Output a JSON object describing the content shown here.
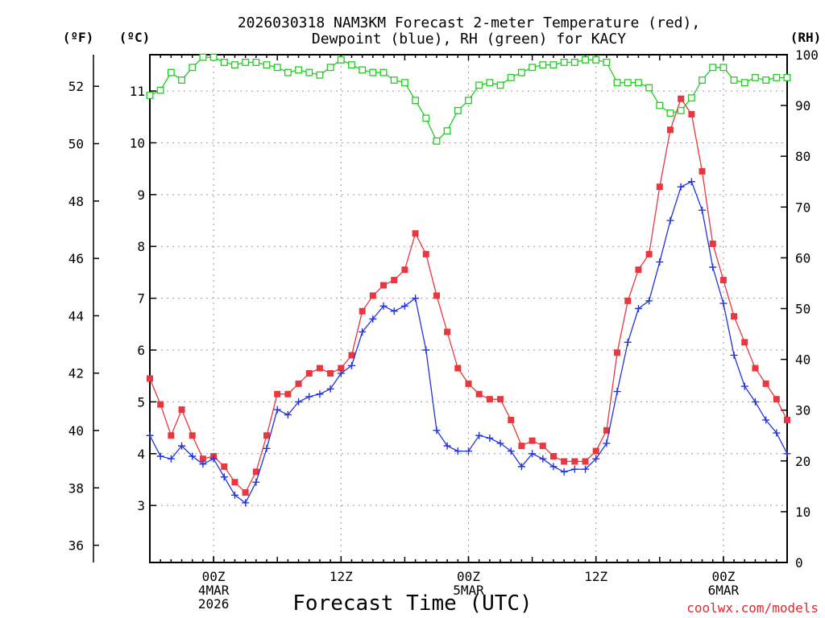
{
  "chart_data": {
    "type": "line",
    "title_lines": [
      "2026030318 NAM3KM Forecast 2-meter Temperature (red),",
      "Dewpoint (blue), RH (green) for KACY"
    ],
    "xlabel": "Forecast Time (UTC)",
    "credit": "coolwx.com/models",
    "unit_labels": {
      "fahrenheit": "(ºF)",
      "celsius": "(ºC)",
      "rh": "(RH)"
    },
    "x_range_hours": [
      18,
      78
    ],
    "x_ticks": [
      {
        "hour": 24,
        "lines": [
          "00Z",
          "4MAR",
          "2026"
        ]
      },
      {
        "hour": 36,
        "lines": [
          "12Z"
        ]
      },
      {
        "hour": 48,
        "lines": [
          "00Z",
          "5MAR"
        ]
      },
      {
        "hour": 60,
        "lines": [
          "12Z"
        ]
      },
      {
        "hour": 72,
        "lines": [
          "00Z",
          "6MAR"
        ]
      }
    ],
    "celsius_range": [
      1.9,
      11.7
    ],
    "celsius_ticks": [
      "3",
      "4",
      "5",
      "6",
      "7",
      "8",
      "9",
      "10",
      "11"
    ],
    "fahrenheit_range": [
      35.4,
      53.1
    ],
    "fahrenheit_ticks": [
      "36",
      "38",
      "40",
      "42",
      "44",
      "46",
      "48",
      "50",
      "52"
    ],
    "rh_range": [
      0,
      100
    ],
    "rh_ticks": [
      "0",
      "10",
      "20",
      "30",
      "40",
      "50",
      "60",
      "70",
      "80",
      "90",
      "100"
    ],
    "colors": {
      "temperature": "#e8373f",
      "dewpoint": "#2233dd",
      "rh": "#22cc22"
    },
    "series": [
      {
        "name": "Temperature (°C)",
        "axis": "celsius",
        "marker": "filled-square",
        "x": [
          18,
          19,
          20,
          21,
          22,
          23,
          24,
          25,
          26,
          27,
          28,
          29,
          30,
          31,
          32,
          33,
          34,
          35,
          36,
          37,
          38,
          39,
          40,
          41,
          42,
          43,
          44,
          45,
          46,
          47,
          48,
          49,
          50,
          51,
          52,
          53,
          54,
          55,
          56,
          57,
          58,
          59,
          60,
          61,
          62,
          63,
          64,
          65,
          66,
          67,
          68,
          69,
          70,
          71,
          72,
          73,
          74,
          75,
          76,
          77,
          78
        ],
        "values": [
          5.45,
          4.95,
          4.35,
          4.85,
          4.35,
          3.9,
          3.95,
          3.75,
          3.45,
          3.25,
          3.65,
          4.35,
          5.15,
          5.15,
          5.35,
          5.55,
          5.65,
          5.55,
          5.65,
          5.9,
          6.75,
          7.05,
          7.25,
          7.35,
          7.55,
          8.25,
          7.85,
          7.05,
          6.35,
          5.65,
          5.35,
          5.15,
          5.05,
          5.05,
          4.65,
          4.15,
          4.25,
          4.15,
          3.95,
          3.85,
          3.85,
          3.85,
          4.05,
          4.45,
          5.95,
          6.95,
          7.55,
          7.85,
          9.15,
          10.25,
          10.85,
          10.55,
          9.45,
          8.05,
          7.35,
          6.65,
          6.15,
          5.65,
          5.35,
          5.05,
          4.65
        ]
      },
      {
        "name": "Dewpoint (°C)",
        "axis": "celsius",
        "marker": "plus",
        "x": [
          18,
          19,
          20,
          21,
          22,
          23,
          24,
          25,
          26,
          27,
          28,
          29,
          30,
          31,
          32,
          33,
          34,
          35,
          36,
          37,
          38,
          39,
          40,
          41,
          42,
          43,
          44,
          45,
          46,
          47,
          48,
          49,
          50,
          51,
          52,
          53,
          54,
          55,
          56,
          57,
          58,
          59,
          60,
          61,
          62,
          63,
          64,
          65,
          66,
          67,
          68,
          69,
          70,
          71,
          72,
          73,
          74,
          75,
          76,
          77,
          78
        ],
        "values": [
          4.35,
          3.95,
          3.9,
          4.15,
          3.95,
          3.8,
          3.9,
          3.55,
          3.2,
          3.05,
          3.45,
          4.1,
          4.85,
          4.75,
          5.0,
          5.1,
          5.15,
          5.25,
          5.55,
          5.7,
          6.35,
          6.6,
          6.85,
          6.75,
          6.85,
          7.0,
          6.0,
          4.45,
          4.15,
          4.05,
          4.05,
          4.35,
          4.3,
          4.2,
          4.05,
          3.75,
          4.0,
          3.9,
          3.75,
          3.65,
          3.7,
          3.7,
          3.9,
          4.2,
          5.2,
          6.15,
          6.8,
          6.95,
          7.7,
          8.5,
          9.15,
          9.25,
          8.7,
          7.6,
          6.9,
          5.9,
          5.3,
          5.0,
          4.65,
          4.4,
          4.0
        ]
      },
      {
        "name": "RH (%)",
        "axis": "rh",
        "marker": "open-square",
        "x": [
          18,
          19,
          20,
          21,
          22,
          23,
          24,
          25,
          26,
          27,
          28,
          29,
          30,
          31,
          32,
          33,
          34,
          35,
          36,
          37,
          38,
          39,
          40,
          41,
          42,
          43,
          44,
          45,
          46,
          47,
          48,
          49,
          50,
          51,
          52,
          53,
          54,
          55,
          56,
          57,
          58,
          59,
          60,
          61,
          62,
          63,
          64,
          65,
          66,
          67,
          68,
          69,
          70,
          71,
          72,
          73,
          74,
          75,
          76,
          77,
          78
        ],
        "values": [
          92,
          93,
          96.5,
          95,
          97.5,
          99.5,
          99.5,
          98.5,
          98,
          98.5,
          98.5,
          98,
          97.5,
          96.5,
          97,
          96.5,
          96,
          97.5,
          99,
          98,
          97,
          96.5,
          96.5,
          95,
          94.5,
          91,
          87.5,
          83,
          85,
          89,
          91,
          94,
          94.5,
          94,
          95.5,
          96.5,
          97.5,
          98,
          98,
          98.5,
          98.5,
          99,
          99,
          98.5,
          94.5,
          94.5,
          94.5,
          93.5,
          90,
          88.5,
          89,
          91.5,
          95,
          97.5,
          97.5,
          95,
          94.5,
          95.5,
          95,
          95.5,
          95.5
        ]
      }
    ]
  }
}
